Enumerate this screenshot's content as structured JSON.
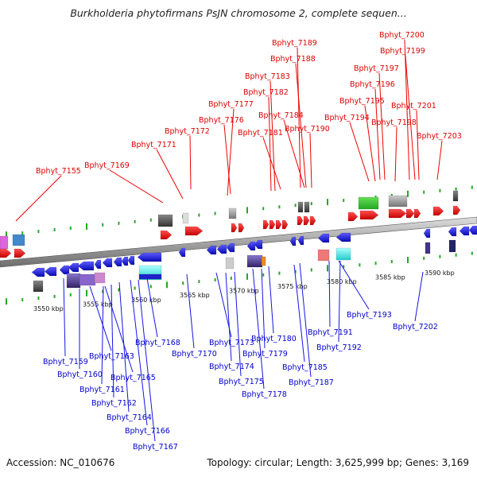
{
  "title": "Burkholderia phytofirmans PsJN chromosome 2, complete sequen...",
  "footer": {
    "accession": "Accession: NC_010676",
    "topology": "Topology: circular; Length: 3,625,999 bp; Genes: 3,169"
  },
  "colors": {
    "forward_gene": "#ee0000",
    "reverse_gene": "#1515e6",
    "label_forward": "#dd0000",
    "label_reverse": "#0000cc",
    "tick": "#22aa22",
    "backbone": "#888888"
  },
  "kbp_labels": [
    "3550 kbp",
    "3555 kbp",
    "3560 kbp",
    "3565 kbp",
    "3570 kbp",
    "3575 kbp",
    "3580 kbp",
    "3585 kbp",
    "3590 kbp"
  ],
  "forward_genes": [
    "Bphyt_7155",
    "Bphyt_7169",
    "Bphyt_7171",
    "Bphyt_7172",
    "Bphyt_7176",
    "Bphyt_7177",
    "Bphyt_7181",
    "Bphyt_7182",
    "Bphyt_7183",
    "Bphyt_7184",
    "Bphyt_7188",
    "Bphyt_7189",
    "Bphyt_7190",
    "Bphyt_7194",
    "Bphyt_7195",
    "Bphyt_7196",
    "Bphyt_7197",
    "Bphyt_7198",
    "Bphyt_7199",
    "Bphyt_7200",
    "Bphyt_7201",
    "Bphyt_7203"
  ],
  "reverse_genes": [
    "Bphyt_7159",
    "Bphyt_7160",
    "Bphyt_7161",
    "Bphyt_7162",
    "Bphyt_7163",
    "Bphyt_7164",
    "Bphyt_7165",
    "Bphyt_7166",
    "Bphyt_7167",
    "Bphyt_7168",
    "Bphyt_7170",
    "Bphyt_7173",
    "Bphyt_7174",
    "Bphyt_7175",
    "Bphyt_7178",
    "Bphyt_7179",
    "Bphyt_7180",
    "Bphyt_7185",
    "Bphyt_7187",
    "Bphyt_7191",
    "Bphyt_7192",
    "Bphyt_7193",
    "Bphyt_7202"
  ]
}
